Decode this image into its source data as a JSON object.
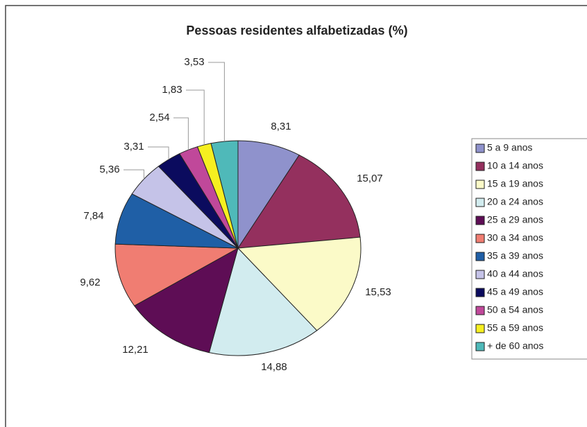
{
  "chart_data": {
    "type": "pie",
    "title": "Pessoas residentes alfabetizadas (%)",
    "categories": [
      "5 a 9 anos",
      "10 a 14 anos",
      "15 a 19 anos",
      "20 a 24 anos",
      "25 a 29 anos",
      "30 a 34 anos",
      "35 a 39 anos",
      "40 a 44 anos",
      "45 a 49 anos",
      "50 a 54 anos",
      "55 a 59 anos",
      "+ de 60 anos"
    ],
    "values": [
      8.31,
      15.07,
      15.53,
      14.88,
      12.21,
      9.62,
      7.84,
      5.36,
      3.31,
      2.54,
      1.83,
      3.53
    ],
    "value_labels": [
      "8,31",
      "15,07",
      "15,53",
      "14,88",
      "12,21",
      "9,62",
      "7,84",
      "5,36",
      "3,31",
      "2,54",
      "1,83",
      "3,53"
    ],
    "colors": [
      "#8f92cc",
      "#94305e",
      "#fbfac8",
      "#d2ecef",
      "#5e0d55",
      "#f07d72",
      "#1f5fa6",
      "#c5c3e8",
      "#0b0b5e",
      "#c0489a",
      "#f6ef20",
      "#4fb9b9"
    ],
    "legend": "right"
  }
}
